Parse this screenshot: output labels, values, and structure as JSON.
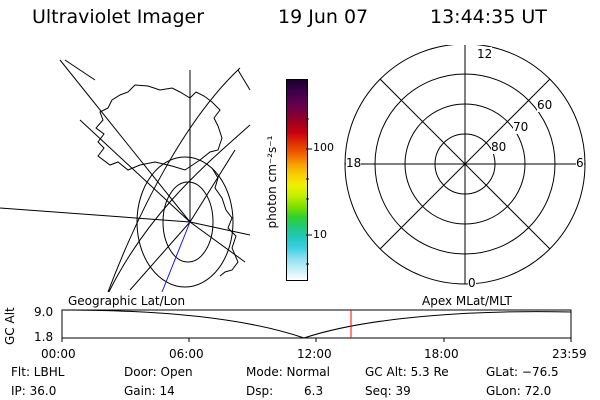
{
  "header": {
    "title": "Ultraviolet Imager",
    "date": "19 Jun 07",
    "time": "13:44:35 UT"
  },
  "colorbar": {
    "label": "photon cm⁻²s⁻¹",
    "tick_high": "100",
    "tick_low": "10",
    "colors": [
      "#1a0030",
      "#3a0048",
      "#5a0050",
      "#7a0040",
      "#a00020",
      "#c80010",
      "#e03000",
      "#f06000",
      "#f8a000",
      "#f8d000",
      "#f0f000",
      "#c0f000",
      "#80e000",
      "#30d030",
      "#20c880",
      "#20c8c0",
      "#40d0e0",
      "#90e0f0",
      "#c8eef8",
      "#ffffff"
    ]
  },
  "polar_plot": {
    "mlt_labels": {
      "top": "12",
      "left": "18",
      "right": "6",
      "bottom": "0"
    },
    "lat_labels": [
      "60",
      "70",
      "80"
    ]
  },
  "timeline": {
    "left_caption": "Geographic Lat/Lon",
    "right_caption": "Apex MLat/MLT",
    "y_axis_label": "GC Alt",
    "y_ticks": [
      "9.0",
      "1.8"
    ],
    "x_ticks": [
      "00:00",
      "06:00",
      "12:00",
      "18:00",
      "23:59"
    ],
    "marker_color": "#ff0000"
  },
  "status": {
    "flt": "Flt: LBHL",
    "ip": "IP: 36.0",
    "door": "Door: Open",
    "gain": "Gain: 14",
    "mode": "Mode: Normal",
    "dsp": "Dsp:",
    "dsp_value": "6.3",
    "gc_alt": "GC Alt: 5.3 Re",
    "seq": "Seq: 39",
    "glat": "GLat: −76.5",
    "glon": "GLon: 72.0"
  }
}
